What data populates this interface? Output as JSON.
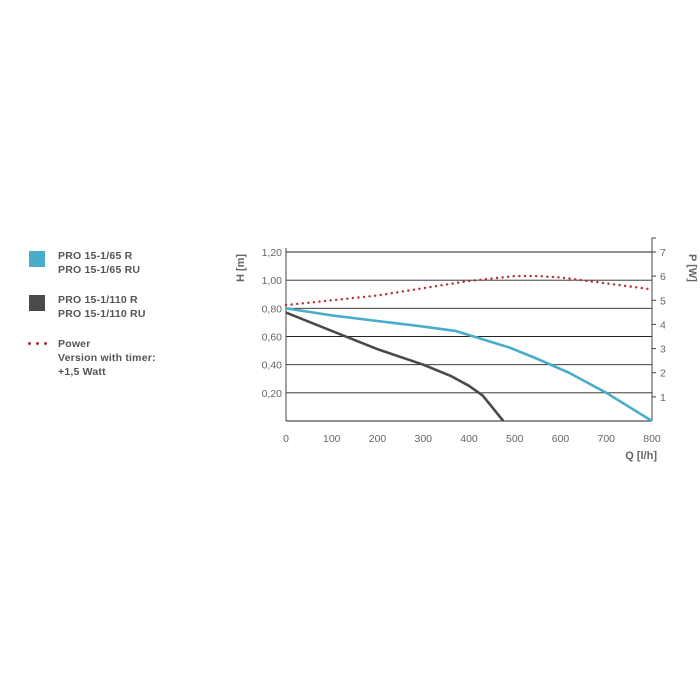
{
  "legend": {
    "series1": {
      "line1": "PRO 15-1/65 R",
      "line2": "PRO 15-1/65 RU",
      "color": "#49adc9"
    },
    "series2": {
      "line1": "PRO 15-1/110 R",
      "line2": "PRO 15-1/110 RU",
      "color": "#4a4a4a"
    },
    "power": {
      "line1": "Power",
      "line2": "Version with timer:",
      "line3": "+1,5 Watt",
      "color": "#b2313a"
    }
  },
  "chart_data": {
    "type": "line",
    "title": "",
    "xlabel": "Q [l/h]",
    "ylabel": "H [m]",
    "y2label": "P [W]",
    "xlim": [
      0,
      800
    ],
    "ylim": [
      0,
      1.2
    ],
    "y2lim": [
      0,
      7
    ],
    "x_ticks": [
      "0",
      "100",
      "200",
      "300",
      "400",
      "500",
      "600",
      "700",
      "800"
    ],
    "y_ticks": [
      "0,20",
      "0,40",
      "0,60",
      "0,80",
      "1,00",
      "1,20"
    ],
    "y2_ticks": [
      "1",
      "2",
      "3",
      "4",
      "5",
      "6",
      "7"
    ],
    "grid": "horizontal",
    "series": [
      {
        "name": "PRO 15-1/65 R / PRO 15-1/65 RU",
        "axis": "left",
        "style": "solid",
        "color": "#49adc9",
        "points": [
          [
            0,
            0.8
          ],
          [
            100,
            0.75
          ],
          [
            200,
            0.71
          ],
          [
            300,
            0.67
          ],
          [
            370,
            0.64
          ],
          [
            420,
            0.59
          ],
          [
            490,
            0.52
          ],
          [
            550,
            0.44
          ],
          [
            620,
            0.34
          ],
          [
            700,
            0.2
          ],
          [
            800,
            0.0
          ]
        ]
      },
      {
        "name": "PRO 15-1/110 R / PRO 15-1/110 RU",
        "axis": "left",
        "style": "solid",
        "color": "#4a4a4a",
        "points": [
          [
            0,
            0.77
          ],
          [
            100,
            0.64
          ],
          [
            200,
            0.51
          ],
          [
            300,
            0.4
          ],
          [
            360,
            0.32
          ],
          [
            400,
            0.25
          ],
          [
            430,
            0.18
          ],
          [
            455,
            0.08
          ],
          [
            475,
            0.0
          ]
        ]
      },
      {
        "name": "Power",
        "axis": "right",
        "style": "dotted",
        "color": "#b2313a",
        "points": [
          [
            0,
            4.8
          ],
          [
            100,
            5.0
          ],
          [
            200,
            5.2
          ],
          [
            300,
            5.5
          ],
          [
            400,
            5.8
          ],
          [
            500,
            6.0
          ],
          [
            550,
            6.0
          ],
          [
            600,
            5.95
          ],
          [
            700,
            5.7
          ],
          [
            800,
            5.45
          ]
        ]
      }
    ]
  }
}
